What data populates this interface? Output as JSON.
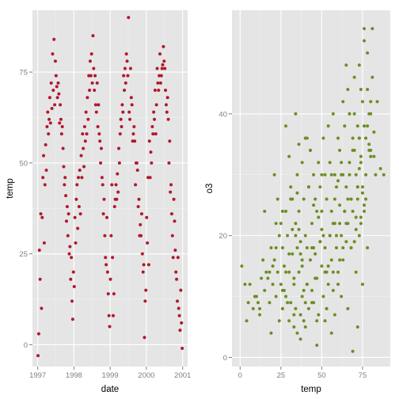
{
  "chart_data": [
    {
      "type": "scatter",
      "xlabel": "date",
      "ylabel": "temp",
      "xscale": "date",
      "xlim": [
        "1996-11-09",
        "2001-02-20"
      ],
      "ylim": [
        -6,
        92
      ],
      "x_ticks": [
        "1997-01-01",
        "1998-01-01",
        "1999-01-01",
        "2000-01-01",
        "2001-01-01"
      ],
      "x_tick_labels": [
        "1997",
        "1998",
        "1999",
        "2000",
        "2001"
      ],
      "y_ticks": [
        0,
        25,
        50,
        75
      ],
      "y_tick_labels": [
        "0",
        "25",
        "50",
        "75"
      ],
      "point_color": "#b2182b",
      "grid": true,
      "series": [
        {
          "x": [
            "1997-01-04",
            "1997-01-11",
            "1997-01-18",
            "1997-01-25",
            "1997-02-01",
            "1997-02-08",
            "1997-02-15",
            "1997-02-22",
            "1997-03-01",
            "1997-03-08",
            "1997-03-15",
            "1997-03-22",
            "1997-03-29",
            "1997-04-05",
            "1997-04-12",
            "1997-04-19",
            "1997-04-26",
            "1997-05-03",
            "1997-05-10",
            "1997-05-17",
            "1997-05-24",
            "1997-05-31",
            "1997-06-07",
            "1997-06-14",
            "1997-06-21",
            "1997-06-28",
            "1997-07-05",
            "1997-07-12",
            "1997-07-19",
            "1997-07-26",
            "1997-08-02",
            "1997-08-09",
            "1997-08-16",
            "1997-08-23",
            "1997-08-30",
            "1997-09-06",
            "1997-09-13",
            "1997-09-20",
            "1997-09-27",
            "1997-10-04",
            "1997-10-11",
            "1997-10-18",
            "1997-10-25",
            "1997-11-01",
            "1997-11-08",
            "1997-11-15",
            "1997-11-22",
            "1997-11-29",
            "1997-12-06",
            "1997-12-13",
            "1997-12-20",
            "1997-12-27",
            "1998-01-04",
            "1998-01-11",
            "1998-01-18",
            "1998-01-25",
            "1998-02-01",
            "1998-02-08",
            "1998-02-15",
            "1998-02-22",
            "1998-03-01",
            "1998-03-08",
            "1998-03-15",
            "1998-03-22",
            "1998-03-29",
            "1998-04-05",
            "1998-04-12",
            "1998-04-19",
            "1998-04-26",
            "1998-05-03",
            "1998-05-10",
            "1998-05-17",
            "1998-05-24",
            "1998-05-31",
            "1998-06-07",
            "1998-06-14",
            "1998-06-21",
            "1998-06-28",
            "1998-07-05",
            "1998-07-12",
            "1998-07-19",
            "1998-07-26",
            "1998-08-02",
            "1998-08-09",
            "1998-08-16",
            "1998-08-23",
            "1998-08-30",
            "1998-09-06",
            "1998-09-13",
            "1998-09-20",
            "1998-09-27",
            "1998-10-04",
            "1998-10-11",
            "1998-10-18",
            "1998-10-25",
            "1998-11-01",
            "1998-11-08",
            "1998-11-15",
            "1998-11-22",
            "1998-11-29",
            "1998-12-06",
            "1998-12-13",
            "1998-12-20",
            "1998-12-27",
            "1999-01-04",
            "1999-01-11",
            "1999-01-18",
            "1999-01-25",
            "1999-02-01",
            "1999-02-08",
            "1999-02-15",
            "1999-02-22",
            "1999-03-01",
            "1999-03-08",
            "1999-03-15",
            "1999-03-22",
            "1999-03-29",
            "1999-04-05",
            "1999-04-12",
            "1999-04-19",
            "1999-04-26",
            "1999-05-03",
            "1999-05-10",
            "1999-05-17",
            "1999-05-24",
            "1999-05-31",
            "1999-06-07",
            "1999-06-14",
            "1999-06-21",
            "1999-06-28",
            "1999-07-05",
            "1999-07-12",
            "1999-07-19",
            "1999-07-26",
            "1999-08-02",
            "1999-08-09",
            "1999-08-16",
            "1999-08-23",
            "1999-08-30",
            "1999-09-06",
            "1999-09-13",
            "1999-09-20",
            "1999-09-27",
            "1999-10-04",
            "1999-10-11",
            "1999-10-18",
            "1999-10-25",
            "1999-11-01",
            "1999-11-08",
            "1999-11-15",
            "1999-11-22",
            "1999-11-29",
            "1999-12-06",
            "1999-12-13",
            "1999-12-20",
            "1999-12-27",
            "2000-01-04",
            "2000-01-11",
            "2000-01-18",
            "2000-01-25",
            "2000-02-01",
            "2000-02-08",
            "2000-02-15",
            "2000-02-22",
            "2000-03-01",
            "2000-03-08",
            "2000-03-15",
            "2000-03-22",
            "2000-03-29",
            "2000-04-05",
            "2000-04-12",
            "2000-04-19",
            "2000-04-26",
            "2000-05-03",
            "2000-05-10",
            "2000-05-17",
            "2000-05-24",
            "2000-05-31",
            "2000-06-07",
            "2000-06-14",
            "2000-06-21",
            "2000-06-28",
            "2000-07-05",
            "2000-07-12",
            "2000-07-19",
            "2000-07-26",
            "2000-08-02",
            "2000-08-09",
            "2000-08-16",
            "2000-08-23",
            "2000-08-30",
            "2000-09-06",
            "2000-09-13",
            "2000-09-20",
            "2000-09-27",
            "2000-10-04",
            "2000-10-11",
            "2000-10-18",
            "2000-10-25",
            "2000-11-01",
            "2000-11-08",
            "2000-11-15",
            "2000-11-22",
            "2000-11-29",
            "2000-12-06",
            "2000-12-13",
            "2000-12-20",
            "2000-12-27"
          ],
          "y": [
            -3,
            3,
            26,
            18,
            36,
            10,
            35,
            46,
            52,
            28,
            44,
            55,
            48,
            60,
            64,
            58,
            62,
            68,
            61,
            72,
            65,
            80,
            70,
            84,
            66,
            78,
            74,
            71,
            68,
            72,
            69,
            61,
            66,
            62,
            58,
            60,
            54,
            49,
            44,
            46,
            41,
            34,
            38,
            30,
            36,
            25,
            27,
            18,
            24,
            12,
            7,
            20,
            16,
            35,
            28,
            40,
            44,
            32,
            46,
            38,
            48,
            36,
            52,
            46,
            58,
            54,
            49,
            60,
            56,
            64,
            58,
            68,
            62,
            74,
            70,
            78,
            74,
            80,
            72,
            85,
            76,
            70,
            74,
            66,
            64,
            72,
            60,
            66,
            58,
            56,
            50,
            54,
            46,
            44,
            36,
            40,
            30,
            24,
            22,
            35,
            20,
            14,
            8,
            5,
            18,
            30,
            44,
            24,
            8,
            14,
            38,
            40,
            44,
            40,
            47,
            42,
            54,
            50,
            58,
            62,
            60,
            66,
            64,
            74,
            70,
            76,
            72,
            80,
            78,
            74,
            90,
            64,
            62,
            76,
            68,
            66,
            56,
            58,
            60,
            56,
            44,
            50,
            50,
            48,
            38,
            40,
            30,
            33,
            30,
            36,
            25,
            20,
            22,
            2,
            12,
            15,
            35,
            28,
            46,
            22,
            56,
            46,
            53,
            50,
            60,
            58,
            64,
            62,
            70,
            58,
            66,
            76,
            72,
            70,
            74,
            80,
            72,
            74,
            76,
            77,
            82,
            78,
            76,
            70,
            66,
            64,
            68,
            62,
            50,
            56,
            42,
            44,
            36,
            30,
            24,
            40,
            34,
            26,
            20,
            18,
            12,
            24,
            10,
            8,
            4,
            15,
            6,
            -1
          ]
        }
      ]
    },
    {
      "type": "scatter",
      "xlabel": "temp",
      "ylabel": "o3",
      "xlim": [
        -5,
        92
      ],
      "ylim": [
        -1.5,
        57
      ],
      "x_ticks": [
        0,
        25,
        50,
        75
      ],
      "x_tick_labels": [
        "0",
        "25",
        "50",
        "75"
      ],
      "y_ticks": [
        0,
        20,
        40
      ],
      "y_tick_labels": [
        "0",
        "20",
        "40"
      ],
      "point_color": "#6b8e23",
      "grid": true,
      "series": [
        {
          "x": [
            1,
            3,
            5,
            8,
            10,
            12,
            13,
            15,
            16,
            18,
            19,
            20,
            21,
            22,
            22,
            23,
            24,
            25,
            26,
            26,
            27,
            28,
            28,
            29,
            30,
            30,
            31,
            31,
            32,
            32,
            33,
            33,
            34,
            34,
            35,
            35,
            35,
            36,
            36,
            37,
            37,
            38,
            38,
            38,
            39,
            39,
            40,
            40,
            41,
            41,
            42,
            42,
            43,
            43,
            44,
            44,
            45,
            45,
            46,
            46,
            47,
            47,
            48,
            48,
            49,
            49,
            50,
            50,
            51,
            51,
            52,
            52,
            53,
            53,
            54,
            54,
            55,
            55,
            56,
            56,
            57,
            57,
            58,
            58,
            59,
            59,
            60,
            60,
            61,
            61,
            62,
            62,
            63,
            63,
            64,
            64,
            65,
            65,
            66,
            66,
            67,
            67,
            68,
            68,
            69,
            69,
            70,
            70,
            71,
            71,
            72,
            72,
            73,
            73,
            74,
            74,
            75,
            75,
            76,
            76,
            77,
            78,
            79,
            80,
            82,
            84,
            86,
            88,
            6,
            14,
            18,
            24,
            27,
            30,
            33,
            36,
            40,
            44,
            48,
            52,
            55,
            58,
            61,
            64,
            67,
            70,
            72,
            74,
            76,
            78,
            80,
            83,
            9,
            17,
            22,
            26,
            29,
            32,
            35,
            38,
            41,
            45,
            49,
            53,
            57,
            60,
            63,
            66,
            69,
            71,
            73,
            75,
            77,
            79,
            81,
            4,
            11,
            20,
            25,
            28,
            31,
            34,
            37,
            39,
            42,
            46,
            50,
            54,
            59,
            62,
            65,
            68,
            70,
            72,
            73,
            74,
            76,
            78,
            80,
            82,
            15,
            23,
            30,
            36,
            43,
            47,
            51,
            56,
            60,
            63,
            67,
            71,
            74,
            77,
            79,
            81,
            12,
            19,
            26,
            33,
            37,
            40,
            44,
            47,
            52,
            56,
            58,
            62,
            66,
            69,
            72,
            75,
            78,
            21,
            28,
            34,
            41,
            45,
            50,
            53,
            57,
            61,
            65,
            68,
            73,
            76,
            80
          ],
          "y": [
            15,
            12,
            9,
            8,
            10,
            7,
            13,
            11,
            14,
            9,
            18,
            12,
            16,
            10,
            22,
            14,
            6,
            12,
            18,
            8,
            15,
            24,
            10,
            20,
            6,
            14,
            28,
            9,
            17,
            26,
            5,
            12,
            22,
            8,
            18,
            30,
            4,
            14,
            24,
            7,
            19,
            32,
            10,
            15,
            26,
            6,
            20,
            36,
            12,
            18,
            28,
            8,
            16,
            34,
            11,
            22,
            30,
            9,
            17,
            26,
            13,
            24,
            32,
            7,
            19,
            28,
            15,
            21,
            36,
            10,
            18,
            30,
            14,
            26,
            38,
            12,
            20,
            32,
            16,
            24,
            40,
            11,
            22,
            30,
            18,
            28,
            36,
            14,
            25,
            34,
            20,
            30,
            42,
            16,
            24,
            38,
            19,
            28,
            44,
            22,
            32,
            40,
            18,
            26,
            36,
            24,
            34,
            46,
            21,
            30,
            38,
            26,
            36,
            48,
            23,
            32,
            42,
            28,
            38,
            52,
            30,
            44,
            35,
            40,
            33,
            42,
            31,
            30,
            12,
            16,
            14,
            20,
            11,
            17,
            13,
            21,
            9,
            18,
            23,
            14,
            20,
            26,
            16,
            24,
            30,
            19,
            28,
            33,
            25,
            38,
            34,
            30,
            10,
            13,
            18,
            24,
            9,
            21,
            27,
            16,
            12,
            25,
            19,
            8,
            22,
            29,
            18,
            26,
            34,
            23,
            31,
            27,
            36,
            40,
            46,
            6,
            9,
            15,
            22,
            14,
            26,
            20,
            17,
            11,
            28,
            13,
            24,
            15,
            20,
            32,
            22,
            18,
            40,
            28,
            36,
            44,
            24,
            50,
            42,
            37,
            24,
            26,
            33,
            35,
            34,
            6,
            20,
            30,
            12,
            30,
            40,
            14,
            22,
            26,
            34,
            54,
            8,
            4,
            11,
            7,
            3,
            5,
            9,
            2,
            6,
            4,
            7,
            10,
            8,
            1,
            5,
            12,
            18,
            30,
            38,
            40,
            36,
            18,
            30,
            8,
            14,
            22,
            48,
            26,
            20,
            54,
            33
          ]
        }
      ]
    }
  ]
}
